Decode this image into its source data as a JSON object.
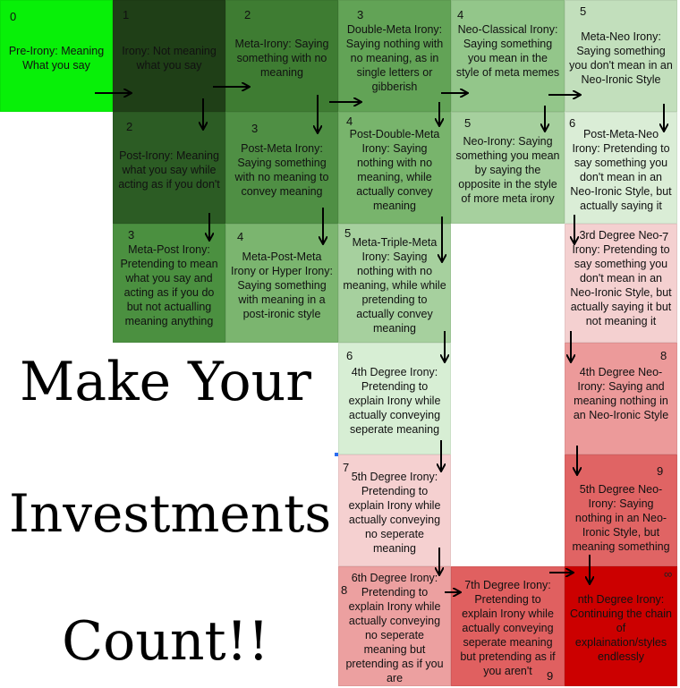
{
  "cells": [
    {
      "id": "c0",
      "num": "0",
      "text": "Pre-Irony: Meaning What you say",
      "color": "#08f008"
    },
    {
      "id": "c1",
      "num": "1",
      "text": "Irony: Not meaning what you say",
      "color": "#1f3f17"
    },
    {
      "id": "c2",
      "num": "2",
      "text": "Meta-Irony: Saying something with no meaning",
      "color": "#3e7c32"
    },
    {
      "id": "c3",
      "num": "3",
      "text": "Double-Meta Irony: Saying nothing with no meaning, as in single letters or gibberish",
      "color": "#62a356"
    },
    {
      "id": "c4",
      "num": "4",
      "text": "Neo-Classical Irony: Saying something you mean in the style of meta memes",
      "color": "#93c68a"
    },
    {
      "id": "c5",
      "num": "5",
      "text": "Meta-Neo Irony: Saying something you don't mean in an Neo-Ironic Style",
      "color": "#c2dfbc"
    },
    {
      "id": "c2b",
      "num": "2",
      "text": "Post-Irony: Meaning what you say while acting as if you don't",
      "color": "#2c5c24"
    },
    {
      "id": "c3b",
      "num": "3",
      "text": "Post-Meta Irony: Saying something with no meaning to convey meaning",
      "color": "#4f8f44"
    },
    {
      "id": "c4b",
      "num": "4",
      "text": "Post-Double-Meta Irony: Saying nothing with no meaning, while actually convey meaning",
      "color": "#78b46c"
    },
    {
      "id": "c5b",
      "num": "5",
      "text": "Neo-Irony: Saying something you mean by saying the opposite in the style of more meta irony",
      "color": "#a6d09e"
    },
    {
      "id": "c6",
      "num": "6",
      "text": "Post-Meta-Neo Irony: Pretending to say something you don't mean in an Neo-Ironic Style, but actually saying it",
      "color": "#daedd6"
    },
    {
      "id": "c3c",
      "num": "3",
      "text": "Meta-Post Irony: Pretending to mean what you say and acting as if you do but not actualling meaning anything",
      "color": "#4b9040"
    },
    {
      "id": "c4c",
      "num": "4",
      "text": "Meta-Post-Meta Irony or Hyper Irony: Saying something with meaning in a post-ironic style",
      "color": "#7bb56f"
    },
    {
      "id": "c5c",
      "num": "5",
      "text": "Meta-Triple-Meta Irony: Saying nothing with no meaning, while while pretending to actually convey meaning",
      "color": "#a6d09e"
    },
    {
      "id": "c7",
      "num": "7",
      "text": "3rd Degree Neo-Irony: Pretending to say something you don't mean in an Neo-Ironic Style, but actually saying it but not meaning it",
      "color": "#f4d0d0"
    },
    {
      "id": "c6b",
      "num": "6",
      "text": "4th Degree Irony: Pretending to explain Irony while actually conveying seperate meaning",
      "color": "#d7eed4"
    },
    {
      "id": "c8",
      "num": "8",
      "text": "4th Degree Neo-Irony: Saying and meaning nothing in an Neo-Ironic Style",
      "color": "#ec9a9a"
    },
    {
      "id": "c7b",
      "num": "7",
      "text": "5th Degree Irony: Pretending to explain Irony while actually conveying no seperate meaning",
      "color": "#f5d0d0"
    },
    {
      "id": "c9",
      "num": "9",
      "text": "5th Degree Neo-Irony: Saying nothing in an Neo-Ironic Style, but meaning something",
      "color": "#e06464"
    },
    {
      "id": "c8b",
      "num": "8",
      "text": "6th Degree Irony: Pretending to explain Irony while actually conveying no seperate meaning but pretending as if you are",
      "color": "#eca0a0"
    },
    {
      "id": "c9b",
      "num": "9",
      "text": "7th Degree Irony: Pretending to explain Irony while actually conveying seperate meaning but pretending as if you aren't",
      "color": "#e06060"
    },
    {
      "id": "cinf",
      "num": "∞",
      "text": "nth Degree Irony: Continuing the chain of explaination/styles endlessly",
      "color": "#cc0000"
    }
  ],
  "title": {
    "line1": "Make Your",
    "line2": "Investments",
    "line3": "Count!!"
  }
}
